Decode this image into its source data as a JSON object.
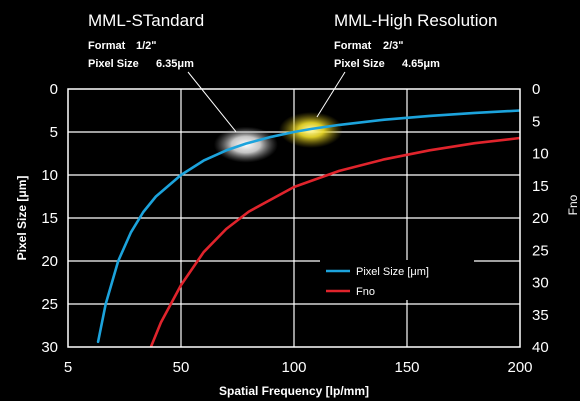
{
  "chart_data": {
    "type": "line",
    "xlabel": "Spatial Frequency [lp/mm]",
    "ylabel": "Pixel Size [μm]",
    "y2label": "Fno",
    "xlim": [
      5,
      200
    ],
    "x_ticks": [
      "5",
      "50",
      "100",
      "150",
      "200"
    ],
    "y_ticks": [
      "0",
      "5",
      "10",
      "15",
      "20",
      "25",
      "30"
    ],
    "y2lim": [
      0,
      40
    ],
    "y2_ticks": [
      "0",
      "5",
      "10",
      "15",
      "20",
      "25",
      "30",
      "35",
      "40"
    ],
    "grid": true,
    "legend_position": "lower-right",
    "series": [
      {
        "name": "Pixel Size [μm]",
        "axis": "left",
        "color": "#1ca3dc",
        "x": [
          17,
          20,
          25,
          30,
          35,
          40,
          50,
          60,
          70,
          78.7,
          90,
          100,
          107.5,
          120,
          140,
          160,
          180,
          200
        ],
        "y": [
          29.4,
          25.0,
          20.0,
          16.7,
          14.3,
          12.5,
          10.0,
          8.33,
          7.14,
          6.35,
          5.56,
          5.0,
          4.65,
          4.17,
          3.57,
          3.13,
          2.78,
          2.5
        ]
      },
      {
        "name": "Fno",
        "axis": "right",
        "color": "#e0242c",
        "x": [
          38,
          42,
          50,
          60,
          70,
          80,
          100,
          120,
          140,
          160,
          180,
          200
        ],
        "y": [
          40.0,
          36.2,
          30.4,
          25.3,
          21.7,
          19.0,
          15.2,
          12.7,
          10.9,
          9.5,
          8.4,
          7.6
        ]
      }
    ],
    "annotations": [
      {
        "title": "MML-STandard",
        "format_label": "Format",
        "format_value": "1/2ʺ",
        "pixel_label": "Pixel Size",
        "pixel_value": "6.35μm",
        "x": 78.7,
        "y": 6.35,
        "glow_color": "#ffffff"
      },
      {
        "title": "MML-High Resolution",
        "format_label": "Format",
        "format_value": "2/3ʺ",
        "pixel_label": "Pixel Size",
        "pixel_value": "4.65μm",
        "x": 107.5,
        "y": 4.65,
        "glow_color": "#ffea3a"
      }
    ]
  }
}
